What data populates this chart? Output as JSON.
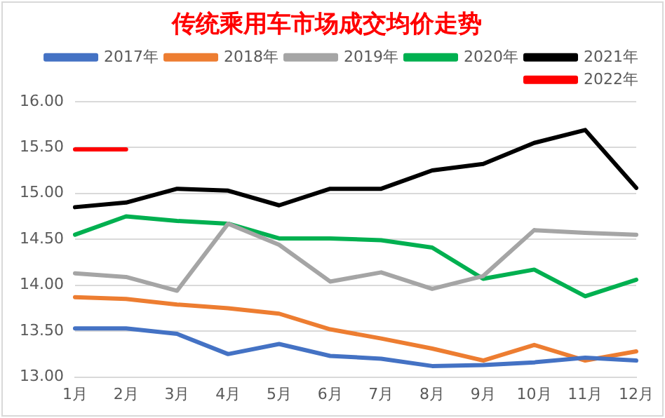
{
  "chart_data": {
    "type": "line",
    "title": "传统乘用车市场成交均价走势",
    "categories": [
      "1月",
      "2月",
      "3月",
      "4月",
      "5月",
      "6月",
      "7月",
      "8月",
      "9月",
      "10月",
      "11月",
      "12月"
    ],
    "series": [
      {
        "name": "2017年",
        "color": "#4472c4",
        "values": [
          13.53,
          13.53,
          13.47,
          13.25,
          13.36,
          13.23,
          13.2,
          13.12,
          13.13,
          13.16,
          13.21,
          13.18
        ]
      },
      {
        "name": "2018年",
        "color": "#ed7d31",
        "values": [
          13.87,
          13.85,
          13.79,
          13.75,
          13.69,
          13.52,
          13.42,
          13.31,
          13.18,
          13.35,
          13.18,
          13.28
        ]
      },
      {
        "name": "2019年",
        "color": "#a5a5a5",
        "values": [
          14.13,
          14.09,
          13.94,
          14.67,
          14.44,
          14.04,
          14.14,
          13.96,
          14.1,
          14.6,
          14.57,
          14.55
        ]
      },
      {
        "name": "2020年",
        "color": "#00b050",
        "values": [
          14.55,
          14.75,
          14.7,
          14.67,
          14.51,
          14.51,
          14.49,
          14.41,
          14.07,
          14.17,
          13.88,
          14.06
        ]
      },
      {
        "name": "2021年",
        "color": "#000000",
        "values": [
          14.85,
          14.9,
          15.05,
          15.03,
          14.87,
          15.05,
          15.05,
          15.25,
          15.32,
          15.55,
          15.69,
          15.06
        ]
      },
      {
        "name": "2022年",
        "color": "#ff0000",
        "values": [
          15.48,
          15.48,
          null,
          null,
          null,
          null,
          null,
          null,
          null,
          null,
          null,
          null
        ]
      }
    ],
    "ylim": [
      13,
      16
    ],
    "yticks": [
      {
        "value": 13,
        "label": "13.00"
      },
      {
        "value": 13.5,
        "label": "13.50"
      },
      {
        "value": 14,
        "label": "14.00"
      },
      {
        "value": 14.5,
        "label": "14.50"
      },
      {
        "value": 15,
        "label": "15.00"
      },
      {
        "value": 15.5,
        "label": "15.50"
      },
      {
        "value": 16,
        "label": "16.00"
      }
    ],
    "grid": "y",
    "legend": "top",
    "marker": "none",
    "line_style": "solid"
  }
}
